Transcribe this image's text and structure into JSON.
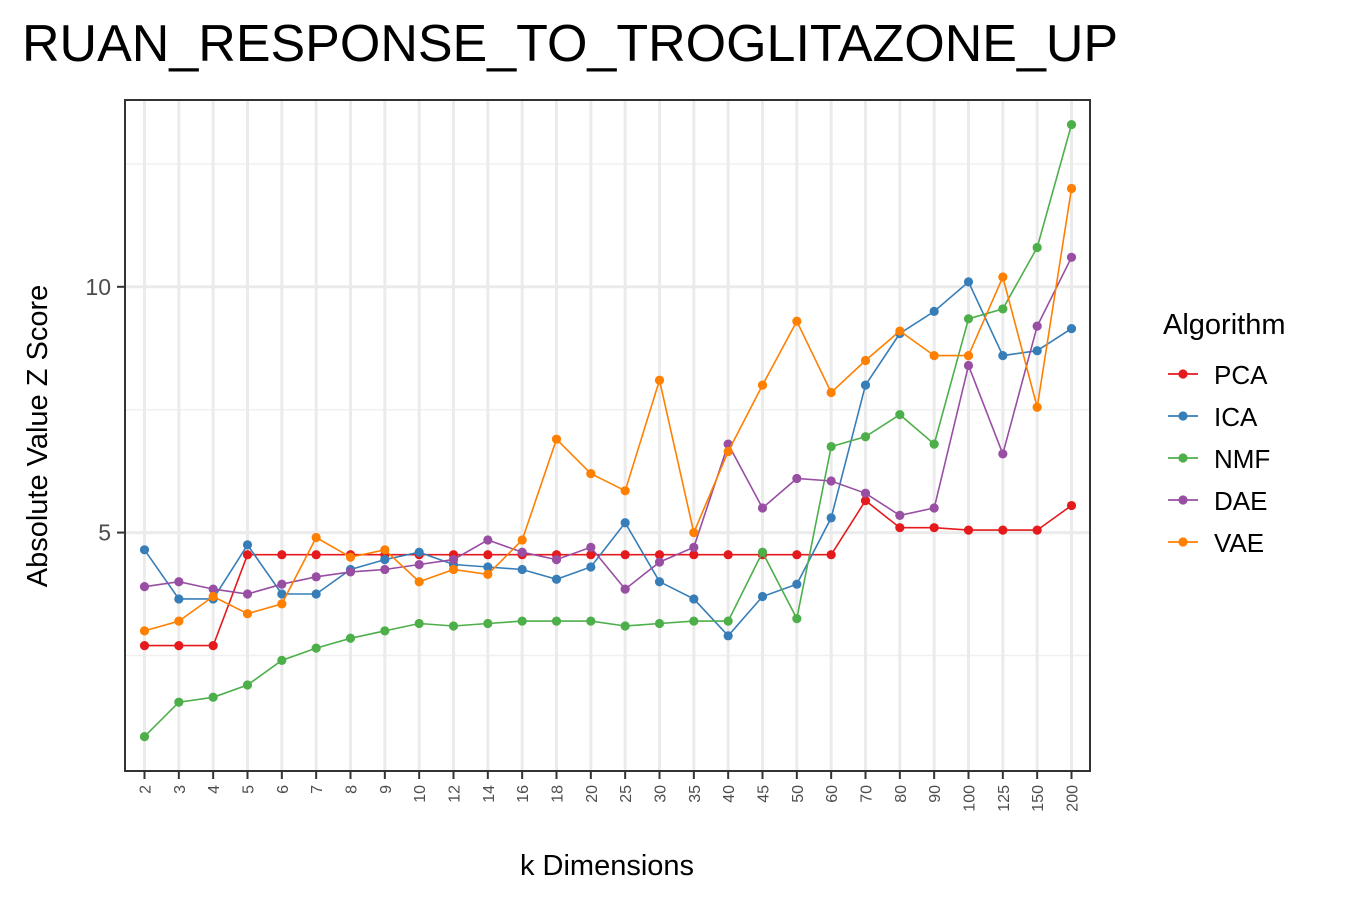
{
  "chart_data": {
    "type": "line",
    "title": "RUAN_RESPONSE_TO_TROGLITAZONE_UP",
    "xlabel": "k Dimensions",
    "ylabel": "Absolute Value Z Score",
    "categories": [
      "2",
      "3",
      "4",
      "5",
      "6",
      "7",
      "8",
      "9",
      "10",
      "12",
      "14",
      "16",
      "18",
      "20",
      "25",
      "30",
      "35",
      "40",
      "45",
      "50",
      "60",
      "70",
      "80",
      "90",
      "100",
      "125",
      "150",
      "200"
    ],
    "ylim": [
      0.15,
      13.8
    ],
    "yticks": [
      5,
      10
    ],
    "ytick_labels": [
      "5",
      "10"
    ],
    "grid": true,
    "legend_title": "Algorithm",
    "legend_position": "right",
    "series": [
      {
        "name": "PCA",
        "color": "#E41A1C",
        "values": [
          2.7,
          2.7,
          2.7,
          4.55,
          4.55,
          4.55,
          4.55,
          4.55,
          4.55,
          4.55,
          4.55,
          4.55,
          4.55,
          4.55,
          4.55,
          4.55,
          4.55,
          4.55,
          4.55,
          4.55,
          4.55,
          5.65,
          5.1,
          5.1,
          5.05,
          5.05,
          5.05,
          5.55
        ]
      },
      {
        "name": "ICA",
        "color": "#377EB8",
        "values": [
          4.65,
          3.65,
          3.65,
          4.75,
          3.75,
          3.75,
          4.25,
          4.45,
          4.6,
          4.35,
          4.3,
          4.25,
          4.05,
          4.3,
          5.2,
          4.0,
          3.65,
          2.9,
          3.7,
          3.95,
          5.3,
          8.0,
          9.05,
          9.5,
          10.1,
          8.6,
          8.7,
          9.15
        ]
      },
      {
        "name": "NMF",
        "color": "#4DAF4A",
        "values": [
          0.85,
          1.55,
          1.65,
          1.9,
          2.4,
          2.65,
          2.85,
          3.0,
          3.15,
          3.1,
          3.15,
          3.2,
          3.2,
          3.2,
          3.1,
          3.15,
          3.2,
          3.2,
          4.6,
          3.25,
          6.75,
          6.95,
          7.4,
          6.8,
          9.35,
          9.55,
          10.8,
          13.3
        ]
      },
      {
        "name": "DAE",
        "color": "#984EA3",
        "values": [
          3.9,
          4.0,
          3.85,
          3.75,
          3.95,
          4.1,
          4.2,
          4.25,
          4.35,
          4.45,
          4.85,
          4.6,
          4.45,
          4.7,
          3.85,
          4.4,
          4.7,
          6.8,
          5.5,
          6.1,
          6.05,
          5.8,
          5.35,
          5.5,
          8.4,
          6.6,
          9.2,
          10.6
        ]
      },
      {
        "name": "VAE",
        "color": "#FF7F00",
        "values": [
          3.0,
          3.2,
          3.7,
          3.35,
          3.55,
          4.9,
          4.5,
          4.65,
          4.0,
          4.25,
          4.15,
          4.85,
          6.9,
          6.2,
          5.85,
          8.1,
          5.0,
          6.65,
          8.0,
          9.3,
          7.85,
          8.5,
          9.1,
          8.6,
          8.6,
          10.2,
          7.55,
          12.0
        ]
      }
    ]
  }
}
